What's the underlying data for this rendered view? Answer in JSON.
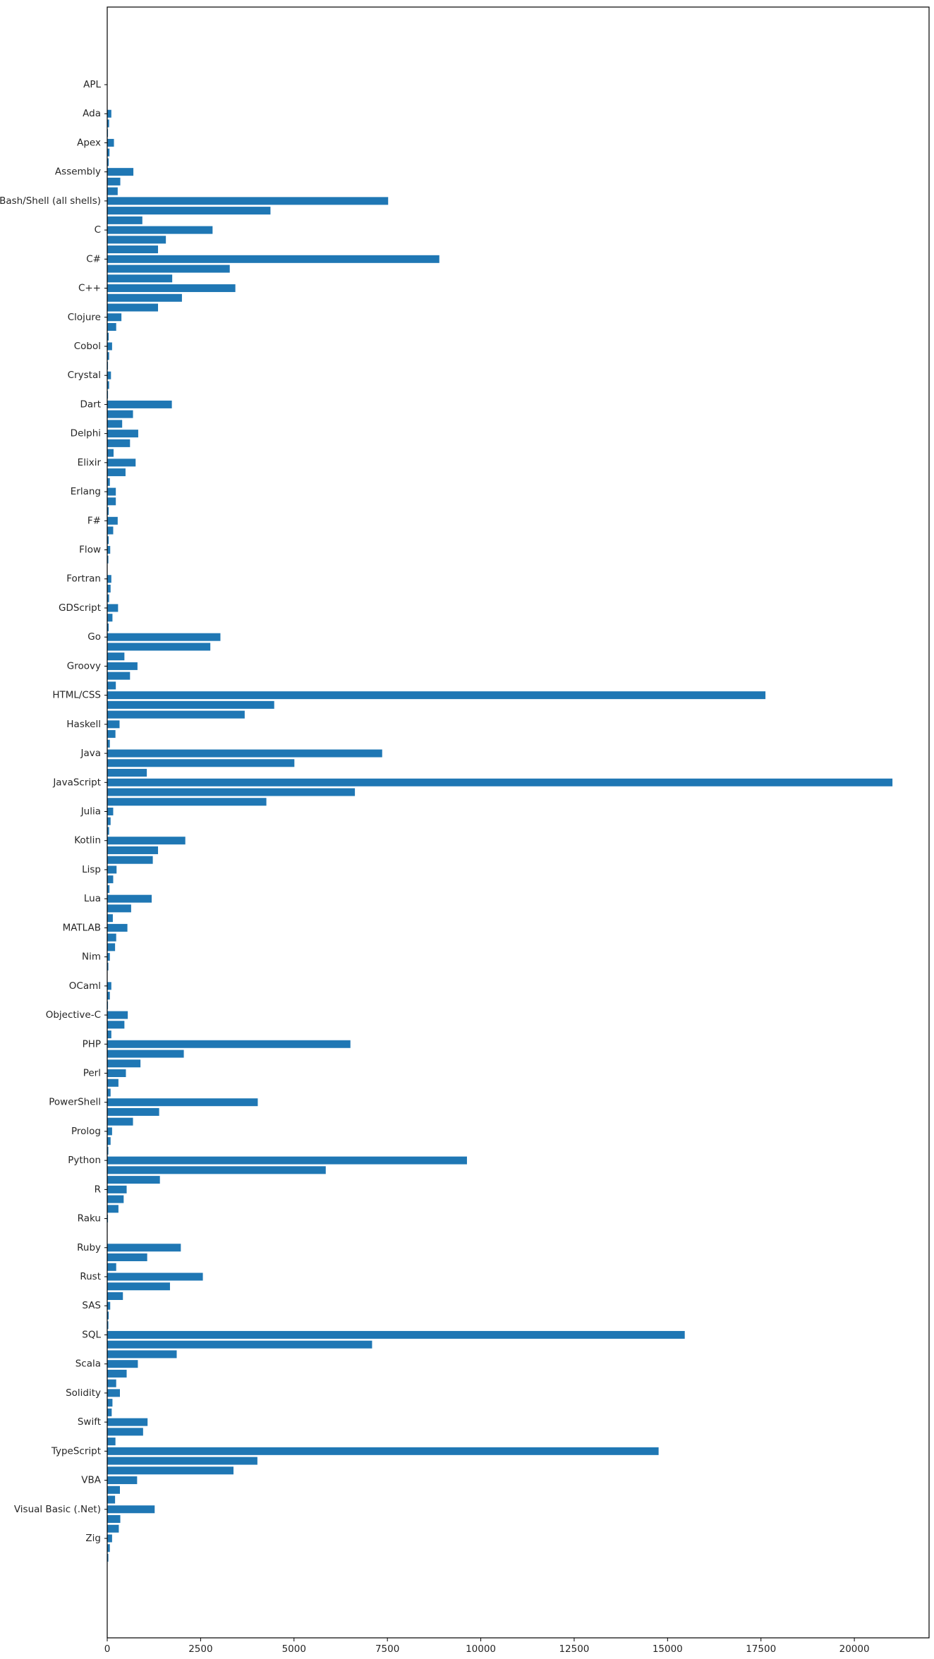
{
  "chart_data": {
    "type": "bar",
    "orientation": "horizontal",
    "title": "",
    "xlabel": "",
    "ylabel": "",
    "xlim": [
      0,
      22000
    ],
    "grid": false,
    "bar_color": "#1f77b4",
    "x_ticks": [
      0,
      2500,
      5000,
      7500,
      10000,
      12500,
      15000,
      17500,
      20000
    ],
    "x_tick_labels": [
      "0",
      "2500",
      "5000",
      "7500",
      "10000",
      "12500",
      "15000",
      "17500",
      "20000"
    ],
    "bars": [
      {
        "label": "APL",
        "value": 0
      },
      {
        "label": "",
        "value": 0
      },
      {
        "label": "",
        "value": 0
      },
      {
        "label": "Ada",
        "value": 110
      },
      {
        "label": "",
        "value": 50
      },
      {
        "label": "",
        "value": 20
      },
      {
        "label": "Apex",
        "value": 180
      },
      {
        "label": "",
        "value": 60
      },
      {
        "label": "",
        "value": 40
      },
      {
        "label": "Assembly",
        "value": 700
      },
      {
        "label": "",
        "value": 350
      },
      {
        "label": "",
        "value": 280
      },
      {
        "label": "Bash/Shell (all shells)",
        "value": 7520
      },
      {
        "label": "",
        "value": 4370
      },
      {
        "label": "",
        "value": 940
      },
      {
        "label": "C",
        "value": 2820
      },
      {
        "label": "",
        "value": 1570
      },
      {
        "label": "",
        "value": 1360
      },
      {
        "label": "C#",
        "value": 8890
      },
      {
        "label": "",
        "value": 3280
      },
      {
        "label": "",
        "value": 1740
      },
      {
        "label": "C++",
        "value": 3430
      },
      {
        "label": "",
        "value": 2000
      },
      {
        "label": "",
        "value": 1360
      },
      {
        "label": "Clojure",
        "value": 380
      },
      {
        "label": "",
        "value": 240
      },
      {
        "label": "",
        "value": 40
      },
      {
        "label": "Cobol",
        "value": 130
      },
      {
        "label": "",
        "value": 50
      },
      {
        "label": "",
        "value": 20
      },
      {
        "label": "Crystal",
        "value": 100
      },
      {
        "label": "",
        "value": 50
      },
      {
        "label": "",
        "value": 20
      },
      {
        "label": "Dart",
        "value": 1730
      },
      {
        "label": "",
        "value": 690
      },
      {
        "label": "",
        "value": 400
      },
      {
        "label": "Delphi",
        "value": 830
      },
      {
        "label": "",
        "value": 610
      },
      {
        "label": "",
        "value": 170
      },
      {
        "label": "Elixir",
        "value": 760
      },
      {
        "label": "",
        "value": 490
      },
      {
        "label": "",
        "value": 70
      },
      {
        "label": "Erlang",
        "value": 230
      },
      {
        "label": "",
        "value": 230
      },
      {
        "label": "",
        "value": 40
      },
      {
        "label": "F#",
        "value": 280
      },
      {
        "label": "",
        "value": 160
      },
      {
        "label": "",
        "value": 40
      },
      {
        "label": "Flow",
        "value": 80
      },
      {
        "label": "",
        "value": 30
      },
      {
        "label": "",
        "value": 10
      },
      {
        "label": "Fortran",
        "value": 110
      },
      {
        "label": "",
        "value": 90
      },
      {
        "label": "",
        "value": 50
      },
      {
        "label": "GDScript",
        "value": 290
      },
      {
        "label": "",
        "value": 140
      },
      {
        "label": "",
        "value": 40
      },
      {
        "label": "Go",
        "value": 3030
      },
      {
        "label": "",
        "value": 2760
      },
      {
        "label": "",
        "value": 460
      },
      {
        "label": "Groovy",
        "value": 810
      },
      {
        "label": "",
        "value": 610
      },
      {
        "label": "",
        "value": 230
      },
      {
        "label": "HTML/CSS",
        "value": 17620
      },
      {
        "label": "",
        "value": 4470
      },
      {
        "label": "",
        "value": 3680
      },
      {
        "label": "Haskell",
        "value": 330
      },
      {
        "label": "",
        "value": 220
      },
      {
        "label": "",
        "value": 70
      },
      {
        "label": "Java",
        "value": 7360
      },
      {
        "label": "",
        "value": 5010
      },
      {
        "label": "",
        "value": 1060
      },
      {
        "label": "JavaScript",
        "value": 21020
      },
      {
        "label": "",
        "value": 6630
      },
      {
        "label": "",
        "value": 4260
      },
      {
        "label": "Julia",
        "value": 160
      },
      {
        "label": "",
        "value": 90
      },
      {
        "label": "",
        "value": 50
      },
      {
        "label": "Kotlin",
        "value": 2090
      },
      {
        "label": "",
        "value": 1360
      },
      {
        "label": "",
        "value": 1220
      },
      {
        "label": "Lisp",
        "value": 250
      },
      {
        "label": "",
        "value": 160
      },
      {
        "label": "",
        "value": 60
      },
      {
        "label": "Lua",
        "value": 1190
      },
      {
        "label": "",
        "value": 640
      },
      {
        "label": "",
        "value": 150
      },
      {
        "label": "MATLAB",
        "value": 540
      },
      {
        "label": "",
        "value": 240
      },
      {
        "label": "",
        "value": 210
      },
      {
        "label": "Nim",
        "value": 70
      },
      {
        "label": "",
        "value": 30
      },
      {
        "label": "",
        "value": 10
      },
      {
        "label": "OCaml",
        "value": 110
      },
      {
        "label": "",
        "value": 70
      },
      {
        "label": "",
        "value": 20
      },
      {
        "label": "Objective-C",
        "value": 550
      },
      {
        "label": "",
        "value": 460
      },
      {
        "label": "",
        "value": 110
      },
      {
        "label": "PHP",
        "value": 6510
      },
      {
        "label": "",
        "value": 2050
      },
      {
        "label": "",
        "value": 890
      },
      {
        "label": "Perl",
        "value": 500
      },
      {
        "label": "",
        "value": 300
      },
      {
        "label": "",
        "value": 90
      },
      {
        "label": "PowerShell",
        "value": 4030
      },
      {
        "label": "",
        "value": 1390
      },
      {
        "label": "",
        "value": 690
      },
      {
        "label": "Prolog",
        "value": 130
      },
      {
        "label": "",
        "value": 90
      },
      {
        "label": "",
        "value": 30
      },
      {
        "label": "Python",
        "value": 9630
      },
      {
        "label": "",
        "value": 5850
      },
      {
        "label": "",
        "value": 1410
      },
      {
        "label": "R",
        "value": 520
      },
      {
        "label": "",
        "value": 440
      },
      {
        "label": "",
        "value": 300
      },
      {
        "label": "Raku",
        "value": 20
      },
      {
        "label": "",
        "value": 10
      },
      {
        "label": "",
        "value": 10
      },
      {
        "label": "Ruby",
        "value": 1970
      },
      {
        "label": "",
        "value": 1070
      },
      {
        "label": "",
        "value": 240
      },
      {
        "label": "Rust",
        "value": 2560
      },
      {
        "label": "",
        "value": 1680
      },
      {
        "label": "",
        "value": 420
      },
      {
        "label": "SAS",
        "value": 80
      },
      {
        "label": "",
        "value": 40
      },
      {
        "label": "",
        "value": 30
      },
      {
        "label": "SQL",
        "value": 15460
      },
      {
        "label": "",
        "value": 7090
      },
      {
        "label": "",
        "value": 1860
      },
      {
        "label": "Scala",
        "value": 820
      },
      {
        "label": "",
        "value": 520
      },
      {
        "label": "",
        "value": 240
      },
      {
        "label": "Solidity",
        "value": 340
      },
      {
        "label": "",
        "value": 140
      },
      {
        "label": "",
        "value": 120
      },
      {
        "label": "Swift",
        "value": 1080
      },
      {
        "label": "",
        "value": 960
      },
      {
        "label": "",
        "value": 220
      },
      {
        "label": "TypeScript",
        "value": 14760
      },
      {
        "label": "",
        "value": 4020
      },
      {
        "label": "",
        "value": 3380
      },
      {
        "label": "VBA",
        "value": 800
      },
      {
        "label": "",
        "value": 340
      },
      {
        "label": "",
        "value": 210
      },
      {
        "label": "Visual Basic (.Net)",
        "value": 1270
      },
      {
        "label": "",
        "value": 350
      },
      {
        "label": "",
        "value": 310
      },
      {
        "label": "Zig",
        "value": 130
      },
      {
        "label": "",
        "value": 70
      },
      {
        "label": "",
        "value": 30
      }
    ]
  }
}
